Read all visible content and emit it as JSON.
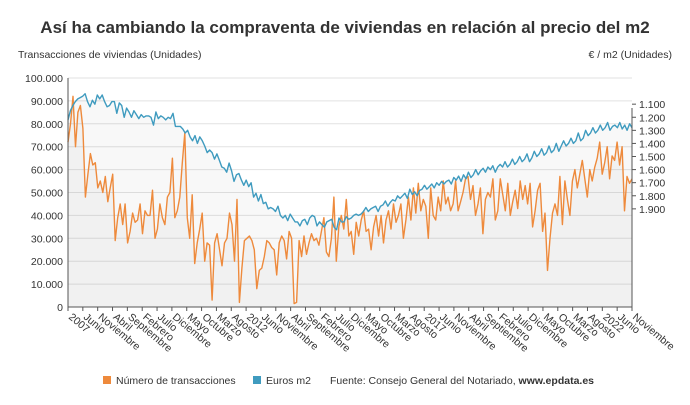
{
  "chart_data": {
    "type": "line",
    "title": "Así ha cambiando la compraventa de viviendas en relación al precio del m2",
    "ylabel_left": "Transacciones de viviendas (Unidades)",
    "ylabel_right": "€ / m2 (Unidades)",
    "ylim_left": [
      0,
      100000
    ],
    "left_ticks": [
      "0",
      "10.000",
      "20.000",
      "30.000",
      "40.000",
      "50.000",
      "60.000",
      "70.000",
      "80.000",
      "90.000",
      "100.000"
    ],
    "ylim_right_inverted": [
      2650,
      900
    ],
    "right_ticks": [
      "1.100",
      "1.200",
      "1.300",
      "1.400",
      "1.500",
      "1.600",
      "1.700",
      "1.800",
      "1.900"
    ],
    "x_tick_labels": [
      "2007",
      "Junio",
      "Noviembre",
      "Abril",
      "Septiembre",
      "Febrero",
      "Julio",
      "Diciembre",
      "Mayo",
      "Octubre",
      "Marzo",
      "Agosto",
      "2012",
      "Junio",
      "Noviembre",
      "Abril",
      "Septiembre",
      "Febrero",
      "Julio",
      "Diciembre",
      "Mayo",
      "Octubre",
      "Marzo",
      "Agosto",
      "2017",
      "Junio",
      "Noviembre",
      "Abril",
      "Septiembre",
      "Febrero",
      "Julio",
      "Diciembre",
      "Mayo",
      "Octubre",
      "Marzo",
      "Agosto",
      "2022",
      "Junio",
      "Noviembre"
    ],
    "series": [
      {
        "name": "Número de transacciones",
        "color": "#ee8a3c",
        "axis": "left",
        "values": [
          72000,
          80000,
          92000,
          70000,
          85000,
          88000,
          78000,
          48000,
          58000,
          67000,
          62000,
          63000,
          52000,
          55000,
          50000,
          57000,
          46000,
          52000,
          58000,
          29000,
          39000,
          45000,
          36000,
          45000,
          28000,
          33000,
          41000,
          37000,
          38000,
          45000,
          32000,
          42000,
          40000,
          40000,
          51000,
          30000,
          34000,
          45000,
          39000,
          36000,
          48000,
          50000,
          65000,
          39000,
          42000,
          48000,
          63000,
          76000,
          39000,
          30000,
          49000,
          19000,
          28000,
          34000,
          41000,
          20000,
          28000,
          27000,
          3000,
          28000,
          32000,
          25000,
          18000,
          28000,
          30000,
          41000,
          36000,
          20000,
          47000,
          2000,
          17000,
          29000,
          30000,
          31000,
          29000,
          25000,
          8000,
          16000,
          17000,
          22000,
          29000,
          28000,
          26000,
          25000,
          14000,
          28000,
          31000,
          29000,
          21000,
          33000,
          30000,
          1500,
          2000,
          29000,
          22000,
          31000,
          23000,
          28000,
          32000,
          29000,
          30000,
          27000,
          33000,
          39000,
          24000,
          22000,
          30000,
          48000,
          20000,
          35000,
          40000,
          34000,
          47000,
          31000,
          33000,
          23000,
          37000,
          31000,
          38000,
          42000,
          33000,
          34000,
          25000,
          35000,
          40000,
          31000,
          40000,
          28000,
          38000,
          42000,
          34000,
          45000,
          37000,
          40000,
          45000,
          30000,
          38000,
          48000,
          38000,
          52000,
          41000,
          54000,
          42000,
          47000,
          44000,
          30000,
          52000,
          40000,
          38000,
          48000,
          42000,
          55000,
          45000,
          48000,
          42000,
          45000,
          55000,
          42000,
          46000,
          50000,
          56000,
          57000,
          47000,
          53000,
          40000,
          45000,
          52000,
          32000,
          47000,
          50000,
          48000,
          56000,
          38000,
          42000,
          56000,
          49000,
          42000,
          54000,
          40000,
          46000,
          51000,
          43000,
          55000,
          47000,
          53000,
          45000,
          54000,
          35000,
          42000,
          51000,
          54000,
          33000,
          41000,
          16000,
          30000,
          41000,
          45000,
          40000,
          57000,
          36000,
          55000,
          47000,
          40000,
          55000,
          60000,
          52000,
          58000,
          64000,
          56000,
          48000,
          60000,
          55000,
          61000,
          65000,
          72000,
          58000,
          63000,
          70000,
          56000,
          66000,
          64000,
          72000,
          62000,
          70000,
          42000,
          57000,
          54000,
          56000
        ]
      },
      {
        "name": "Euros m2",
        "color": "#3f9bbf",
        "axis": "right",
        "values": [
          1220,
          1150,
          1110,
          1080,
          1060,
          1050,
          1040,
          1020,
          1080,
          1120,
          1070,
          1100,
          1030,
          1060,
          1030,
          1080,
          1120,
          1110,
          1080,
          1080,
          1170,
          1090,
          1110,
          1200,
          1130,
          1160,
          1200,
          1150,
          1180,
          1210,
          1180,
          1200,
          1190,
          1190,
          1200,
          1260,
          1160,
          1210,
          1190,
          1200,
          1220,
          1200,
          1210,
          1170,
          1270,
          1270,
          1270,
          1290,
          1320,
          1300,
          1350,
          1380,
          1340,
          1400,
          1350,
          1380,
          1420,
          1470,
          1450,
          1470,
          1520,
          1480,
          1530,
          1580,
          1590,
          1620,
          1550,
          1610,
          1690,
          1640,
          1630,
          1680,
          1720,
          1680,
          1730,
          1700,
          1810,
          1780,
          1840,
          1790,
          1860,
          1850,
          1900,
          1890,
          1900,
          1920,
          1880,
          1950,
          1970,
          1950,
          1990,
          1940,
          1970,
          2000,
          2000,
          2030,
          1990,
          1980,
          2020,
          1970,
          1950,
          1960,
          2030,
          2000,
          2020,
          2040,
          2000,
          1990,
          1980,
          2040,
          2060,
          1970,
          2000,
          2000,
          1960,
          1980,
          1970,
          1950,
          1940,
          1950,
          1940,
          1920,
          1890,
          1920,
          1900,
          1890,
          1880,
          1920,
          1880,
          1870,
          1840,
          1880,
          1850,
          1830,
          1840,
          1800,
          1820,
          1800,
          1780,
          1820,
          1750,
          1790,
          1770,
          1800,
          1760,
          1750,
          1720,
          1750,
          1730,
          1710,
          1740,
          1700,
          1720,
          1690,
          1710,
          1690,
          1680,
          1710,
          1660,
          1680,
          1650,
          1690,
          1640,
          1670,
          1620,
          1660,
          1640,
          1600,
          1640,
          1610,
          1590,
          1620,
          1580,
          1600,
          1570,
          1620,
          1580,
          1560,
          1580,
          1540,
          1580,
          1560,
          1520,
          1560,
          1540,
          1500,
          1540,
          1520,
          1480,
          1540,
          1510,
          1460,
          1500,
          1480,
          1440,
          1490,
          1470,
          1420,
          1470,
          1450,
          1400,
          1460,
          1420,
          1380,
          1420,
          1400,
          1360,
          1400,
          1380,
          1320,
          1380,
          1360,
          1300,
          1340,
          1320,
          1280,
          1320,
          1300,
          1260,
          1300,
          1280,
          1240,
          1300,
          1270,
          1260,
          1280,
          1240,
          1290,
          1260,
          1300,
          1250,
          1280
        ]
      }
    ],
    "legend": {
      "position": "bottom",
      "items": [
        "Número de transacciones",
        "Euros m2"
      ]
    },
    "source_label": "Fuente: Consejo General del Notariado, ",
    "source_site": "www.epdata.es",
    "grid": "horizontal"
  }
}
